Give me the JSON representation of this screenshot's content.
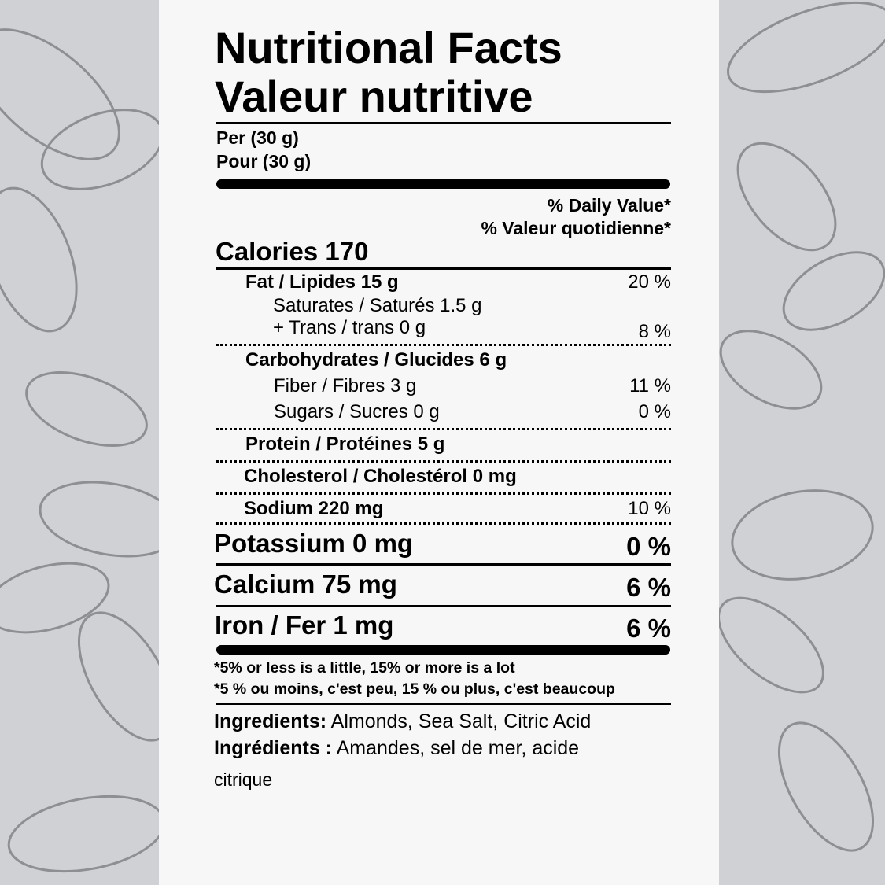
{
  "title_en": "Nutritional Facts",
  "title_fr": "Valeur nutritive",
  "serving_en": "Per (30 g)",
  "serving_fr": "Pour (30 g)",
  "dv_en": "% Daily Value*",
  "dv_fr": "% Valeur quotidienne*",
  "calories": "Calories 170",
  "rows": [
    {
      "label": "Fat / Lipides 15 g",
      "dv": "20 %"
    },
    {
      "label": "Saturates / Saturés 1.5 g",
      "dv": ""
    },
    {
      "label": "+ Trans / trans 0 g",
      "dv": "8 %"
    },
    {
      "label": "Carbohydrates / Glucides 6 g",
      "dv": ""
    },
    {
      "label": "Fiber / Fibres 3 g",
      "dv": "11 %"
    },
    {
      "label": "Sugars / Sucres 0 g",
      "dv": "0 %"
    },
    {
      "label": "Protein / Protéines  5 g",
      "dv": ""
    },
    {
      "label": "Cholesterol / Cholestérol 0 mg",
      "dv": ""
    },
    {
      "label": "Sodium 220 mg",
      "dv": "10 %"
    },
    {
      "label": "Potassium 0 mg",
      "dv": "0 %"
    },
    {
      "label": "Calcium 75 mg",
      "dv": "6 %"
    },
    {
      "label": "Iron / Fer 1 mg",
      "dv": "6 %"
    }
  ],
  "footnote_en": "*5% or less is a little, 15% or more is a lot",
  "footnote_fr": "*5 % ou moins, c'est peu, 15 % ou plus, c'est beaucoup",
  "ingredients_en_label": "Ingredients:",
  "ingredients_en": " Almonds, Sea Salt, Citric Acid",
  "ingredients_fr_label": "Ingrédients :",
  "ingredients_fr": " Amandes, sel de mer, acide",
  "ingredients_fr_cont": "citrique",
  "background_icon": "almond-sketch-icon"
}
